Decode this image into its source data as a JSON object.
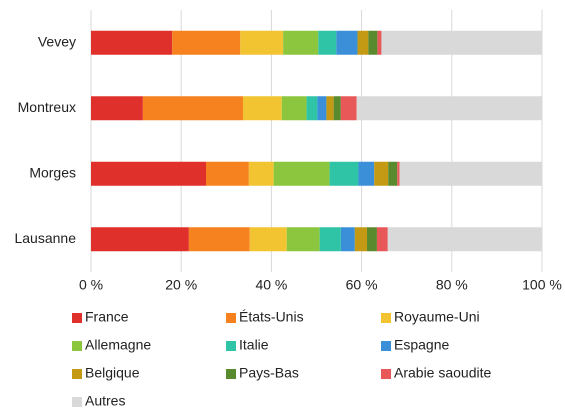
{
  "chart_data": {
    "type": "stacked-barh",
    "categories": [
      "Vevey",
      "Montreux",
      "Morges",
      "Lausanne"
    ],
    "series": [
      {
        "name": "France",
        "color": "#e0302c",
        "values": [
          18.0,
          11.5,
          25.5,
          21.7
        ]
      },
      {
        "name": "États-Unis",
        "color": "#f5821f",
        "values": [
          15.1,
          22.2,
          9.5,
          13.5
        ]
      },
      {
        "name": "Royaume-Uni",
        "color": "#f2c431",
        "values": [
          9.5,
          8.6,
          5.5,
          8.2
        ]
      },
      {
        "name": "Allemagne",
        "color": "#8cc63f",
        "values": [
          7.8,
          5.5,
          12.4,
          7.3
        ]
      },
      {
        "name": "Italie",
        "color": "#2ec4a5",
        "values": [
          4.0,
          2.4,
          6.4,
          4.7
        ]
      },
      {
        "name": "Espagne",
        "color": "#3b8fd9",
        "values": [
          4.7,
          2.0,
          3.5,
          3.1
        ]
      },
      {
        "name": "Belgique",
        "color": "#c49a14",
        "values": [
          2.4,
          1.6,
          3.1,
          2.7
        ]
      },
      {
        "name": "Pays-Bas",
        "color": "#5a8a2e",
        "values": [
          2.0,
          1.6,
          2.0,
          2.2
        ]
      },
      {
        "name": "Arabie saoudite",
        "color": "#e85858",
        "values": [
          0.9,
          3.5,
          0.5,
          2.4
        ]
      },
      {
        "name": "Autres",
        "color": "#d9d9d9",
        "values": [
          35.6,
          41.1,
          31.6,
          34.2
        ]
      }
    ],
    "xlim": [
      0,
      100
    ],
    "xticks": [
      {
        "value": 0,
        "label": "0 %"
      },
      {
        "value": 20,
        "label": "20 %"
      },
      {
        "value": 40,
        "label": "40 %"
      },
      {
        "value": 60,
        "label": "60 %"
      },
      {
        "value": 80,
        "label": "80 %"
      },
      {
        "value": 100,
        "label": "100 %"
      }
    ],
    "grid": true,
    "legend": "bottom"
  }
}
